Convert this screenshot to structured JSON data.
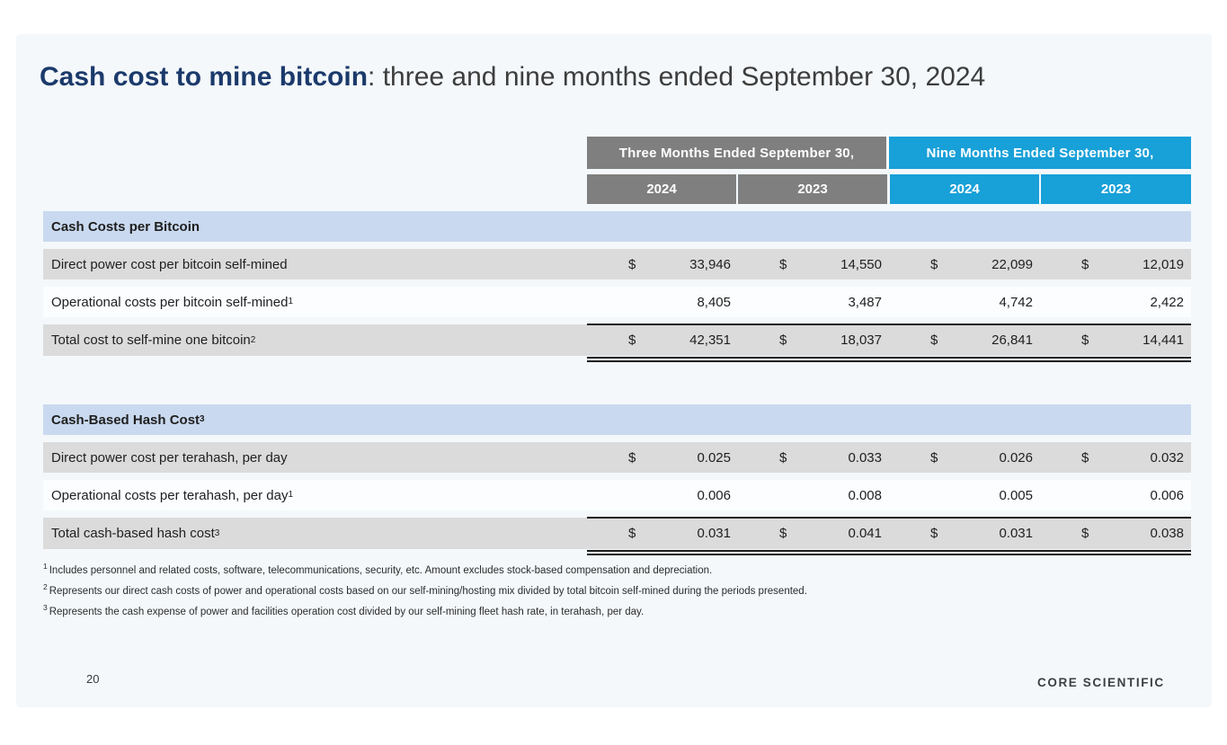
{
  "page": {
    "background": "#ffffff",
    "slide_background": "#f4f8fb"
  },
  "title": {
    "emphasis": "Cash cost to mine bitcoin",
    "rest": ": three and nine months ended September 30, 2024"
  },
  "colors": {
    "title_navy": "#1b3a6b",
    "header_gray": "#7f7f7f",
    "brand_blue": "#18a0d8",
    "section_band_blue": "#c9d9ef",
    "row_gray": "#dbdbdb"
  },
  "table": {
    "column_groups": [
      {
        "label": "Three Months Ended September 30,",
        "color": "#7f7f7f"
      },
      {
        "label": "Nine Months Ended September 30,",
        "color": "#18a0d8"
      }
    ],
    "year_columns": [
      {
        "label": "2024",
        "color": "#7f7f7f"
      },
      {
        "label": "2023",
        "color": "#7f7f7f"
      },
      {
        "label": "2024",
        "color": "#18a0d8"
      },
      {
        "label": "2023",
        "color": "#18a0d8"
      }
    ],
    "sections": [
      {
        "header": "Cash Costs per Bitcoin",
        "header_sup": "",
        "rows": [
          {
            "label": "Direct power cost per bitcoin self-mined",
            "sup": "",
            "currency": "$",
            "values": [
              "33,946",
              "14,550",
              "22,099",
              "12,019"
            ]
          },
          {
            "label": "Operational costs per bitcoin self-mined",
            "sup": "1",
            "currency": "",
            "values": [
              "8,405",
              "3,487",
              "4,742",
              "2,422"
            ]
          },
          {
            "label": "Total cost to self-mine one bitcoin",
            "sup": "2",
            "currency": "$",
            "values": [
              "42,351",
              "18,037",
              "26,841",
              "14,441"
            ]
          }
        ]
      },
      {
        "header": "Cash-Based Hash Cost",
        "header_sup": "3",
        "rows": [
          {
            "label": "Direct power cost per terahash, per day",
            "sup": "",
            "currency": "$",
            "values": [
              "0.025",
              "0.033",
              "0.026",
              "0.032"
            ]
          },
          {
            "label": "Operational costs per terahash, per day",
            "sup": "1",
            "currency": "",
            "values": [
              "0.006",
              "0.008",
              "0.005",
              "0.006"
            ]
          },
          {
            "label": "Total cash-based hash cost",
            "sup": "3",
            "currency": "$",
            "values": [
              "0.031",
              "0.041",
              "0.031",
              "0.038"
            ]
          }
        ]
      }
    ]
  },
  "footnotes": [
    {
      "sup": "1",
      "text": "Includes personnel and related costs, software, telecommunications, security, etc. Amount excludes stock-based compensation and depreciation."
    },
    {
      "sup": "2",
      "text": "Represents our direct cash costs of power and operational costs based on our self-mining/hosting mix divided by total bitcoin self-mined during the periods presented."
    },
    {
      "sup": "3",
      "text": "Represents the cash expense of power and facilities operation cost divided by our self-mining fleet hash rate, in terahash, per day."
    }
  ],
  "footer": {
    "page_number": "20",
    "logo_text": "CORE SCIENTIFIC"
  }
}
